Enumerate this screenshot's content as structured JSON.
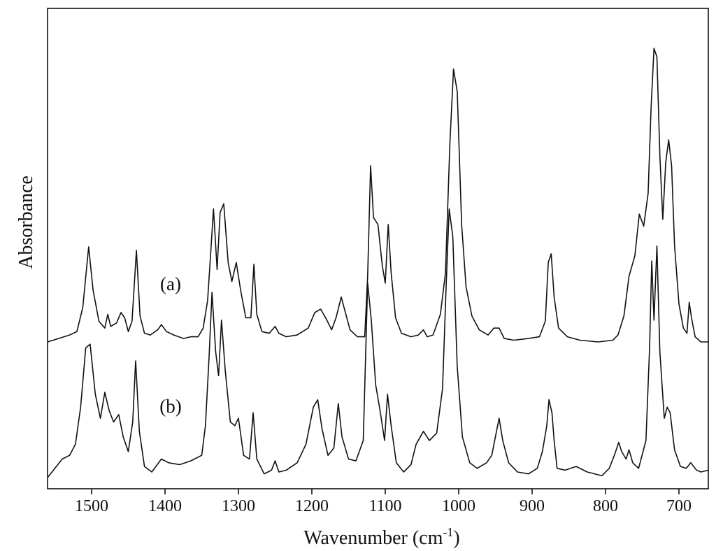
{
  "chart_data": {
    "type": "line",
    "title": "",
    "xlabel": "Wavenumber (cm",
    "xlabel_sup": "-1",
    "xlabel_close": ")",
    "ylabel": "Absorbance",
    "xlim": [
      1560,
      660
    ],
    "x_reversed": true,
    "x_ticks": [
      1500,
      1400,
      1300,
      1200,
      1100,
      1000,
      900,
      800,
      700
    ],
    "y_ticks_shown": false,
    "grid": false,
    "legend": "none",
    "series": [
      {
        "label": "(a)",
        "baseline_note": "upper trace",
        "baseline": 0.0,
        "points": [
          [
            1560,
            0.0
          ],
          [
            1545,
            0.02
          ],
          [
            1530,
            0.04
          ],
          [
            1520,
            0.06
          ],
          [
            1512,
            0.2
          ],
          [
            1504,
            0.55
          ],
          [
            1498,
            0.3
          ],
          [
            1490,
            0.12
          ],
          [
            1482,
            0.08
          ],
          [
            1478,
            0.16
          ],
          [
            1474,
            0.09
          ],
          [
            1466,
            0.11
          ],
          [
            1460,
            0.17
          ],
          [
            1455,
            0.14
          ],
          [
            1450,
            0.06
          ],
          [
            1445,
            0.12
          ],
          [
            1439,
            0.53
          ],
          [
            1434,
            0.15
          ],
          [
            1428,
            0.05
          ],
          [
            1420,
            0.04
          ],
          [
            1410,
            0.07
          ],
          [
            1405,
            0.1
          ],
          [
            1398,
            0.06
          ],
          [
            1388,
            0.04
          ],
          [
            1375,
            0.02
          ],
          [
            1365,
            0.03
          ],
          [
            1355,
            0.03
          ],
          [
            1348,
            0.08
          ],
          [
            1342,
            0.24
          ],
          [
            1338,
            0.5
          ],
          [
            1334,
            0.77
          ],
          [
            1329,
            0.42
          ],
          [
            1325,
            0.75
          ],
          [
            1320,
            0.8
          ],
          [
            1314,
            0.46
          ],
          [
            1309,
            0.35
          ],
          [
            1303,
            0.46
          ],
          [
            1297,
            0.3
          ],
          [
            1290,
            0.14
          ],
          [
            1283,
            0.14
          ],
          [
            1279,
            0.45
          ],
          [
            1275,
            0.16
          ],
          [
            1268,
            0.06
          ],
          [
            1258,
            0.05
          ],
          [
            1250,
            0.09
          ],
          [
            1245,
            0.05
          ],
          [
            1235,
            0.03
          ],
          [
            1220,
            0.04
          ],
          [
            1205,
            0.08
          ],
          [
            1196,
            0.17
          ],
          [
            1188,
            0.19
          ],
          [
            1180,
            0.13
          ],
          [
            1173,
            0.07
          ],
          [
            1167,
            0.14
          ],
          [
            1160,
            0.26
          ],
          [
            1155,
            0.18
          ],
          [
            1148,
            0.07
          ],
          [
            1138,
            0.03
          ],
          [
            1128,
            0.03
          ],
          [
            1124,
            0.38
          ],
          [
            1120,
            1.02
          ],
          [
            1116,
            0.72
          ],
          [
            1110,
            0.68
          ],
          [
            1104,
            0.44
          ],
          [
            1100,
            0.34
          ],
          [
            1096,
            0.68
          ],
          [
            1092,
            0.4
          ],
          [
            1086,
            0.14
          ],
          [
            1078,
            0.05
          ],
          [
            1065,
            0.03
          ],
          [
            1055,
            0.04
          ],
          [
            1048,
            0.07
          ],
          [
            1043,
            0.03
          ],
          [
            1035,
            0.04
          ],
          [
            1025,
            0.16
          ],
          [
            1018,
            0.4
          ],
          [
            1012,
            1.15
          ],
          [
            1007,
            1.58
          ],
          [
            1002,
            1.45
          ],
          [
            996,
            0.68
          ],
          [
            990,
            0.32
          ],
          [
            982,
            0.15
          ],
          [
            972,
            0.07
          ],
          [
            960,
            0.04
          ],
          [
            952,
            0.08
          ],
          [
            945,
            0.08
          ],
          [
            938,
            0.02
          ],
          [
            925,
            0.01
          ],
          [
            905,
            0.02
          ],
          [
            890,
            0.03
          ],
          [
            882,
            0.12
          ],
          [
            878,
            0.46
          ],
          [
            874,
            0.51
          ],
          [
            870,
            0.26
          ],
          [
            864,
            0.08
          ],
          [
            852,
            0.03
          ],
          [
            835,
            0.01
          ],
          [
            810,
            0.0
          ],
          [
            790,
            0.01
          ],
          [
            783,
            0.04
          ],
          [
            775,
            0.15
          ],
          [
            768,
            0.38
          ],
          [
            760,
            0.5
          ],
          [
            754,
            0.74
          ],
          [
            748,
            0.67
          ],
          [
            742,
            0.86
          ],
          [
            738,
            1.35
          ],
          [
            734,
            1.7
          ],
          [
            730,
            1.65
          ],
          [
            726,
            1.08
          ],
          [
            722,
            0.71
          ],
          [
            718,
            1.04
          ],
          [
            714,
            1.17
          ],
          [
            710,
            1.02
          ],
          [
            706,
            0.56
          ],
          [
            700,
            0.22
          ],
          [
            694,
            0.08
          ],
          [
            689,
            0.05
          ],
          [
            686,
            0.23
          ],
          [
            683,
            0.14
          ],
          [
            678,
            0.03
          ],
          [
            670,
            0.0
          ],
          [
            660,
            0.0
          ]
        ]
      },
      {
        "label": "(b)",
        "baseline_note": "lower trace",
        "baseline": 0.0,
        "points": [
          [
            1560,
            0.0
          ],
          [
            1550,
            0.05
          ],
          [
            1540,
            0.1
          ],
          [
            1530,
            0.12
          ],
          [
            1522,
            0.18
          ],
          [
            1515,
            0.38
          ],
          [
            1508,
            0.7
          ],
          [
            1502,
            0.72
          ],
          [
            1495,
            0.45
          ],
          [
            1488,
            0.32
          ],
          [
            1482,
            0.46
          ],
          [
            1476,
            0.36
          ],
          [
            1470,
            0.3
          ],
          [
            1463,
            0.34
          ],
          [
            1457,
            0.22
          ],
          [
            1450,
            0.14
          ],
          [
            1444,
            0.3
          ],
          [
            1440,
            0.63
          ],
          [
            1435,
            0.25
          ],
          [
            1428,
            0.06
          ],
          [
            1418,
            0.03
          ],
          [
            1405,
            0.1
          ],
          [
            1395,
            0.08
          ],
          [
            1380,
            0.07
          ],
          [
            1365,
            0.09
          ],
          [
            1350,
            0.12
          ],
          [
            1345,
            0.28
          ],
          [
            1340,
            0.65
          ],
          [
            1336,
            1.0
          ],
          [
            1331,
            0.68
          ],
          [
            1327,
            0.55
          ],
          [
            1323,
            0.85
          ],
          [
            1318,
            0.58
          ],
          [
            1311,
            0.3
          ],
          [
            1305,
            0.28
          ],
          [
            1300,
            0.32
          ],
          [
            1293,
            0.12
          ],
          [
            1285,
            0.1
          ],
          [
            1280,
            0.35
          ],
          [
            1275,
            0.1
          ],
          [
            1265,
            0.02
          ],
          [
            1255,
            0.04
          ],
          [
            1250,
            0.09
          ],
          [
            1245,
            0.03
          ],
          [
            1235,
            0.04
          ],
          [
            1220,
            0.08
          ],
          [
            1208,
            0.18
          ],
          [
            1198,
            0.38
          ],
          [
            1192,
            0.42
          ],
          [
            1186,
            0.26
          ],
          [
            1178,
            0.12
          ],
          [
            1170,
            0.16
          ],
          [
            1164,
            0.4
          ],
          [
            1159,
            0.22
          ],
          [
            1150,
            0.1
          ],
          [
            1140,
            0.09
          ],
          [
            1130,
            0.2
          ],
          [
            1124,
            1.05
          ],
          [
            1119,
            0.85
          ],
          [
            1113,
            0.5
          ],
          [
            1107,
            0.36
          ],
          [
            1101,
            0.2
          ],
          [
            1097,
            0.45
          ],
          [
            1092,
            0.28
          ],
          [
            1085,
            0.08
          ],
          [
            1075,
            0.03
          ],
          [
            1065,
            0.07
          ],
          [
            1058,
            0.18
          ],
          [
            1048,
            0.25
          ],
          [
            1040,
            0.2
          ],
          [
            1030,
            0.24
          ],
          [
            1022,
            0.48
          ],
          [
            1017,
            1.05
          ],
          [
            1013,
            1.45
          ],
          [
            1008,
            1.3
          ],
          [
            1002,
            0.6
          ],
          [
            995,
            0.22
          ],
          [
            985,
            0.08
          ],
          [
            975,
            0.05
          ],
          [
            962,
            0.08
          ],
          [
            955,
            0.12
          ],
          [
            950,
            0.22
          ],
          [
            945,
            0.32
          ],
          [
            940,
            0.2
          ],
          [
            932,
            0.08
          ],
          [
            920,
            0.03
          ],
          [
            905,
            0.02
          ],
          [
            893,
            0.05
          ],
          [
            886,
            0.14
          ],
          [
            880,
            0.28
          ],
          [
            877,
            0.42
          ],
          [
            873,
            0.35
          ],
          [
            870,
            0.2
          ],
          [
            866,
            0.05
          ],
          [
            855,
            0.04
          ],
          [
            840,
            0.06
          ],
          [
            825,
            0.03
          ],
          [
            805,
            0.01
          ],
          [
            795,
            0.05
          ],
          [
            788,
            0.12
          ],
          [
            782,
            0.19
          ],
          [
            778,
            0.14
          ],
          [
            772,
            0.1
          ],
          [
            768,
            0.15
          ],
          [
            763,
            0.08
          ],
          [
            755,
            0.05
          ],
          [
            745,
            0.2
          ],
          [
            740,
            0.7
          ],
          [
            737,
            1.17
          ],
          [
            734,
            0.85
          ],
          [
            730,
            1.25
          ],
          [
            726,
            0.68
          ],
          [
            720,
            0.32
          ],
          [
            716,
            0.38
          ],
          [
            712,
            0.35
          ],
          [
            706,
            0.15
          ],
          [
            698,
            0.06
          ],
          [
            690,
            0.05
          ],
          [
            684,
            0.08
          ],
          [
            676,
            0.04
          ],
          [
            670,
            0.03
          ],
          [
            660,
            0.04
          ]
        ]
      }
    ]
  }
}
